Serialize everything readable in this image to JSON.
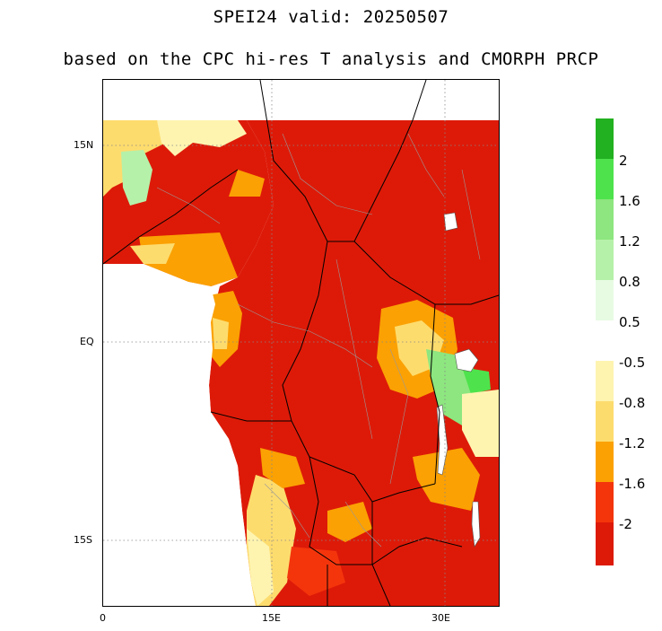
{
  "title": "SPEI24   valid: 20250507",
  "subtitle": "based on the CPC hi-res T analysis and CMORPH PRCP",
  "map": {
    "lat_labels": [
      "15N",
      "EQ",
      "15S"
    ],
    "lon_labels": [
      "0",
      "15E",
      "30E"
    ],
    "colors": {
      "extreme_dry": "#dd1a08",
      "very_dry": "#f4350c",
      "severe_dry": "#fba103",
      "moderate_dry": "#fddc6e",
      "mild_dry": "#fef4b0",
      "mild_wet": "#e7fbe3",
      "moderate_wet": "#b6f1a9",
      "severe_wet": "#8de67f",
      "very_wet": "#4ee34c",
      "extreme_wet": "#22b120",
      "ocean": "#ffffff",
      "border": "#9a9a9a",
      "gridline": "#888888"
    }
  },
  "colorbar": {
    "swatches": [
      {
        "color": "#22b120",
        "label": ""
      },
      {
        "color": "#4ee34c",
        "label": "2"
      },
      {
        "color": "#8de67f",
        "label": "1.6"
      },
      {
        "color": "#b6f1a9",
        "label": "1.2"
      },
      {
        "color": "#e7fbe3",
        "label": "0.8"
      },
      {
        "color": "#ffffff",
        "label": "0.5"
      },
      {
        "color": "#fef4b0",
        "label": "-0.5"
      },
      {
        "color": "#fddc6e",
        "label": "-0.8"
      },
      {
        "color": "#fba103",
        "label": "-1.2"
      },
      {
        "color": "#f4350c",
        "label": "-1.6"
      },
      {
        "color": "#dd1a08",
        "label": "-2"
      }
    ]
  }
}
